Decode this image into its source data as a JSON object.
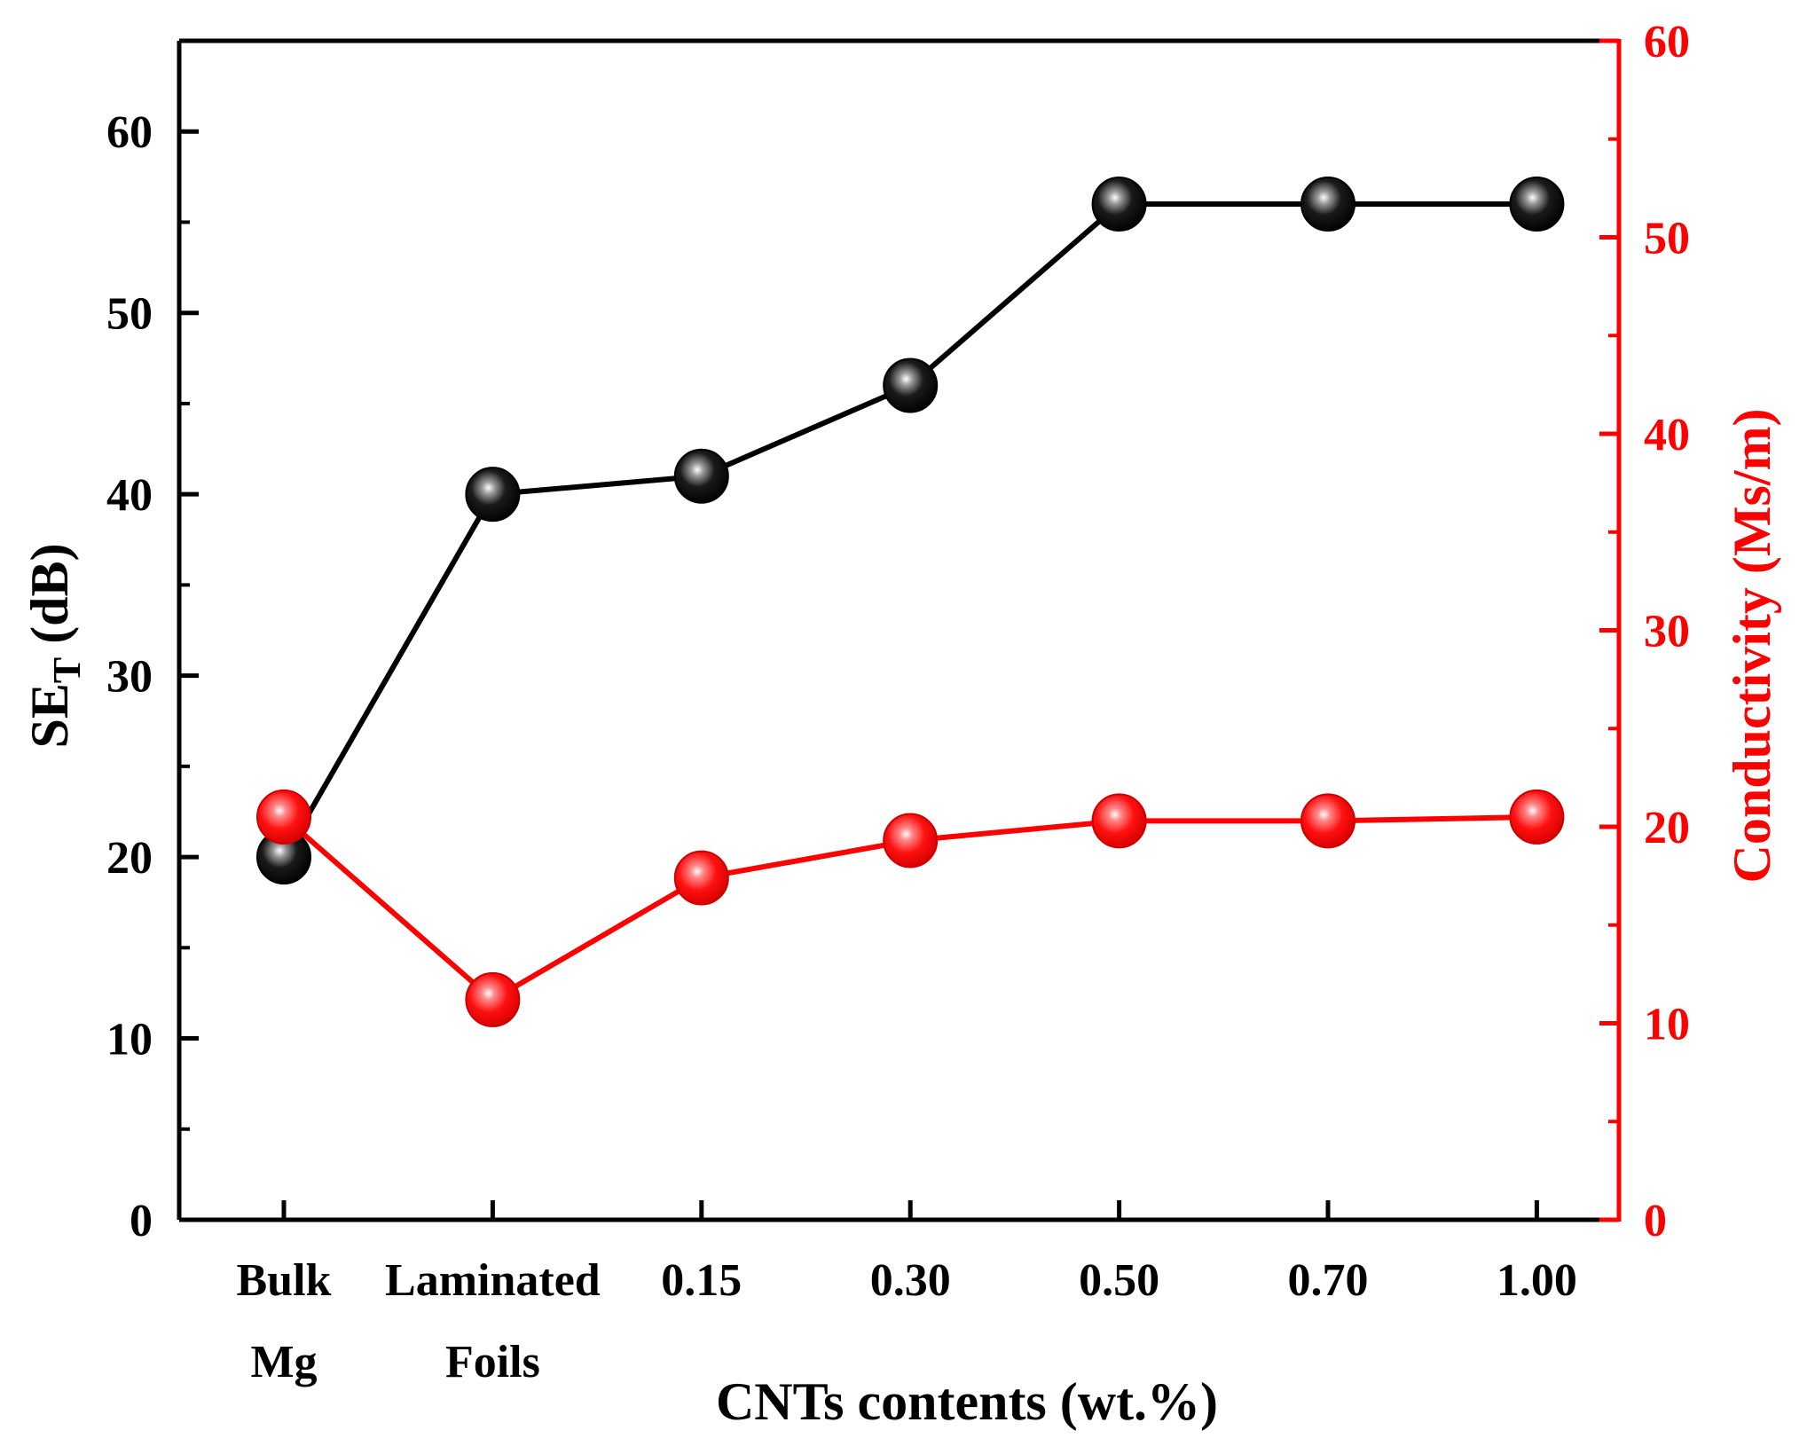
{
  "chart_data": {
    "type": "line",
    "title": "",
    "xlabel": "CNTs contents (wt.%)",
    "categories": [
      [
        "Bulk",
        "Mg"
      ],
      [
        "Laminated",
        "Foils"
      ],
      [
        "0.15"
      ],
      [
        "0.30"
      ],
      [
        "0.50"
      ],
      [
        "0.70"
      ],
      [
        "1.00"
      ]
    ],
    "ylabel_left": {
      "main": "SE",
      "sub": "T",
      "unit": " (dB)"
    },
    "ylabel_right": "Conductivity (Ms/m)",
    "ylim_left": [
      0,
      65
    ],
    "ylim_right": [
      0,
      60
    ],
    "yticks_left": [
      0,
      10,
      20,
      30,
      40,
      50,
      60
    ],
    "yticks_right": [
      0,
      10,
      20,
      30,
      40,
      50,
      60
    ],
    "series": [
      {
        "name": "SE_T",
        "axis": "left",
        "color": "#000000",
        "values": [
          20,
          40,
          41,
          46,
          56,
          56,
          56
        ]
      },
      {
        "name": "Conductivity",
        "axis": "right",
        "color": "#ff0000",
        "values": [
          20.5,
          11.2,
          17.4,
          19.3,
          20.3,
          20.3,
          20.5
        ]
      }
    ],
    "colors": {
      "left_axis": "#000000",
      "right_axis": "#ff0000"
    }
  }
}
